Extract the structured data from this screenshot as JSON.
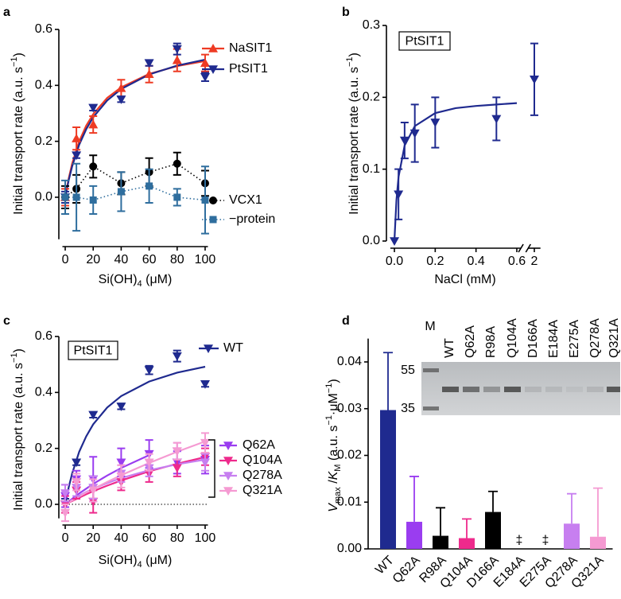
{
  "chart_data": [
    {
      "type": "scatter",
      "panel": "a",
      "ylabel": [
        {
          "text": "Initial transport rate (a.u. s"
        },
        {
          "text": "−1",
          "shift": "sup"
        },
        {
          "text": ")"
        }
      ],
      "xlabel": [
        {
          "text": "Si(OH)"
        },
        {
          "text": "4",
          "shift": "sub"
        },
        {
          "text": " (μM)"
        }
      ],
      "x": [
        0,
        8,
        20,
        40,
        60,
        80,
        100
      ],
      "xlim": [
        -2,
        102
      ],
      "xticks": [
        0,
        20,
        40,
        60,
        80,
        100
      ],
      "ylim": [
        -0.15,
        0.6
      ],
      "yticks": [
        {
          "value": 0,
          "label": "0.0"
        },
        0.2,
        0.4,
        0.6
      ],
      "fit_x": [
        0,
        2.5,
        5,
        10,
        15,
        20,
        30,
        40,
        60,
        80,
        100
      ],
      "series": [
        {
          "name": "NaSIT1",
          "color": "#ee3b24",
          "marker": "triangle-up",
          "values": [
            0.0,
            0.21,
            0.26,
            0.39,
            0.44,
            0.49,
            0.48
          ],
          "errors": [
            0.03,
            0.04,
            0.03,
            0.03,
            0.03,
            0.04,
            0.03
          ],
          "fit": [
            0,
            0.067,
            0.121,
            0.2,
            0.256,
            0.297,
            0.355,
            0.393,
            0.441,
            0.469,
            0.487
          ]
        },
        {
          "name": "PtSIT1",
          "color": "#1f2a8f",
          "marker": "triangle-down",
          "values": [
            0.0,
            0.15,
            0.32,
            0.35,
            0.48,
            0.53,
            0.43
          ],
          "errors": [
            0.02,
            0.01,
            0.01,
            0.01,
            0.01,
            0.02,
            0.015
          ],
          "fit": [
            0,
            0.061,
            0.111,
            0.188,
            0.243,
            0.286,
            0.346,
            0.387,
            0.439,
            0.471,
            0.492
          ]
        },
        {
          "name": "VCX1",
          "color": "#000000",
          "marker": "circle",
          "line": "dotted",
          "values": [
            0.0,
            0.03,
            0.11,
            0.05,
            0.09,
            0.12,
            0.05
          ],
          "errors": [
            0.04,
            0.05,
            0.04,
            0.04,
            0.05,
            0.04,
            0.045
          ]
        },
        {
          "name": "−protein",
          "color": "#2f6e9e",
          "marker": "square",
          "line": "dotted",
          "values": [
            0.0,
            0.0,
            -0.01,
            0.02,
            0.04,
            0.0,
            -0.01
          ],
          "errors": [
            0.06,
            0.12,
            0.05,
            0.07,
            0.06,
            0.03,
            0.12
          ]
        }
      ]
    },
    {
      "type": "scatter",
      "panel": "b",
      "label_box": "PtSIT1",
      "ylabel": [
        {
          "text": "Initial transport rate (a.u. s"
        },
        {
          "text": "−1",
          "shift": "sup"
        },
        {
          "text": ")"
        }
      ],
      "xlabel": [
        {
          "text": "NaCl (mM)"
        }
      ],
      "x": [
        0,
        0.02,
        0.05,
        0.1,
        0.2,
        0.5,
        2
      ],
      "xsegments": [
        [
          -0.02,
          0.62
        ],
        [
          1.97,
          2.03
        ]
      ],
      "xticks": [
        {
          "value": 0,
          "label": "0.0"
        },
        0.2,
        0.4,
        0.6,
        2
      ],
      "ylim": [
        0,
        0.3
      ],
      "yticks": [
        {
          "value": 0,
          "label": "0.0"
        },
        0.1,
        0.2,
        0.3
      ],
      "fit_x": [
        0,
        0.01,
        0.02,
        0.05,
        0.1,
        0.2,
        0.3,
        0.4,
        0.5,
        0.6
      ],
      "series": [
        {
          "color": "#1f2a8f",
          "marker": "triangle-down",
          "values": [
            0.0,
            0.065,
            0.14,
            0.15,
            0.165,
            0.17,
            0.225
          ],
          "errors": [
            null,
            0.035,
            0.025,
            0.04,
            0.035,
            0.03,
            0.05
          ],
          "fit": [
            0,
            0.057,
            0.089,
            0.133,
            0.16,
            0.178,
            0.185,
            0.188,
            0.19,
            0.192
          ]
        }
      ]
    },
    {
      "type": "scatter",
      "panel": "c",
      "label_box": "PtSIT1",
      "zero_line": true,
      "ylabel": [
        {
          "text": "Initial transport rate (a.u. s"
        },
        {
          "text": "−1",
          "shift": "sup"
        },
        {
          "text": ")"
        }
      ],
      "xlabel": [
        {
          "text": "Si(OH)"
        },
        {
          "text": "4",
          "shift": "sub"
        },
        {
          "text": " (μM)"
        }
      ],
      "x": [
        0,
        8,
        20,
        40,
        60,
        80,
        100
      ],
      "xlim": [
        -2,
        102
      ],
      "xticks": [
        0,
        20,
        40,
        60,
        80,
        100
      ],
      "ylim": [
        -0.05,
        0.6
      ],
      "yticks": [
        {
          "value": 0,
          "label": "0.0"
        },
        0.2,
        0.4,
        0.6
      ],
      "fit_x": [
        0,
        2.5,
        5,
        10,
        15,
        20,
        30,
        40,
        60,
        80,
        100
      ],
      "series": [
        {
          "name": "WT",
          "color": "#1f2a8f",
          "marker": "triangle-down",
          "values": [
            0.0,
            0.15,
            0.32,
            0.35,
            0.48,
            0.53,
            0.43
          ],
          "errors": [
            0.02,
            0.01,
            0.01,
            0.01,
            0.015,
            0.02,
            0.01
          ],
          "fit": [
            0,
            0.061,
            0.111,
            0.188,
            0.243,
            0.286,
            0.346,
            0.387,
            0.439,
            0.471,
            0.492
          ]
        },
        {
          "name": "Q62A",
          "color": "#9a3df0",
          "marker": "triangle-down",
          "values": [
            0.03,
            0.09,
            0.09,
            0.15,
            0.18,
            0.15,
            0.16
          ],
          "errors": [
            0.04,
            0.03,
            0.08,
            0.05,
            0.05,
            0.04,
            0.05
          ],
          "fit": [
            0,
            0.01,
            0.02,
            0.039,
            0.056,
            0.073,
            0.103,
            0.13,
            0.176,
            null,
            null
          ]
        },
        {
          "name": "Q104A",
          "color": "#ee2a8c",
          "marker": "triangle-down",
          "values": [
            0.0,
            0.05,
            0.01,
            0.08,
            0.11,
            0.13,
            0.17
          ],
          "errors": [
            0.03,
            0.03,
            0.04,
            0.03,
            0.03,
            0.03,
            0.03
          ],
          "fit": [
            0,
            0.006,
            0.012,
            0.024,
            0.036,
            0.047,
            0.067,
            0.085,
            0.118,
            0.145,
            0.169
          ]
        },
        {
          "name": "Q278A",
          "color": "#c77ff0",
          "marker": "triangle-down",
          "values": [
            0.04,
            0.06,
            0.06,
            0.11,
            0.13,
            0.19,
            0.15
          ],
          "errors": [
            0.03,
            0.03,
            0.04,
            0.03,
            0.03,
            0.03,
            0.03
          ],
          "fit": [
            0,
            0.008,
            0.016,
            0.031,
            0.044,
            0.056,
            0.076,
            0.094,
            0.122,
            0.143,
            0.16
          ]
        },
        {
          "name": "Q321A",
          "color": "#f59ad2",
          "marker": "triangle-down",
          "values": [
            -0.03,
            0.08,
            0.05,
            0.1,
            0.15,
            0.19,
            0.22
          ],
          "errors": [
            0.03,
            0.03,
            0.04,
            0.04,
            0.03,
            0.03,
            0.035
          ],
          "fit": [
            0,
            0.007,
            0.014,
            0.028,
            0.042,
            0.055,
            0.08,
            0.104,
            0.148,
            0.188,
            0.225
          ]
        }
      ]
    },
    {
      "type": "bar",
      "panel": "d",
      "ylabel": [
        {
          "text": "V",
          "font": "italic"
        },
        {
          "text": "max",
          "shift": "sub"
        },
        {
          "text": " /"
        },
        {
          "text": "K",
          "font": "italic"
        },
        {
          "text": "M",
          "shift": "sub"
        },
        {
          "text": " (a.u. s"
        },
        {
          "text": "−1",
          "shift": "sup"
        },
        {
          "text": "·μM"
        },
        {
          "text": "−1",
          "shift": "sup"
        },
        {
          "text": ")"
        }
      ],
      "categories": [
        "WT",
        "Q62A",
        "R98A",
        "Q104A",
        "D166A",
        "E184A",
        "E275A",
        "Q278A",
        "Q321A"
      ],
      "values": [
        0.0297,
        0.0058,
        0.0028,
        0.0023,
        0.0079,
        null,
        null,
        0.0054,
        0.0026
      ],
      "errors": [
        0.0123,
        0.0097,
        0.006,
        0.0041,
        0.0044,
        null,
        null,
        0.0064,
        0.0104
      ],
      "colors": [
        "#1f2a8f",
        "#9a3df0",
        "#000000",
        "#ee2a8c",
        "#000000",
        "#000000",
        "#000000",
        "#c77ff0",
        "#f59ad2"
      ],
      "annotations": [
        {
          "category": "E184A",
          "text": "‡"
        },
        {
          "category": "E275A",
          "text": "‡"
        }
      ],
      "ylim": [
        0,
        0.045
      ],
      "yticks": [
        {
          "value": 0,
          "label": "0.00"
        },
        0.01,
        0.02,
        0.03,
        0.04
      ],
      "inset": {
        "lanes": [
          "M",
          "WT",
          "Q62A",
          "R98A",
          "Q104A",
          "D166A",
          "E184A",
          "E275A",
          "Q278A",
          "Q321A"
        ],
        "markers": [
          55,
          35
        ]
      }
    }
  ]
}
